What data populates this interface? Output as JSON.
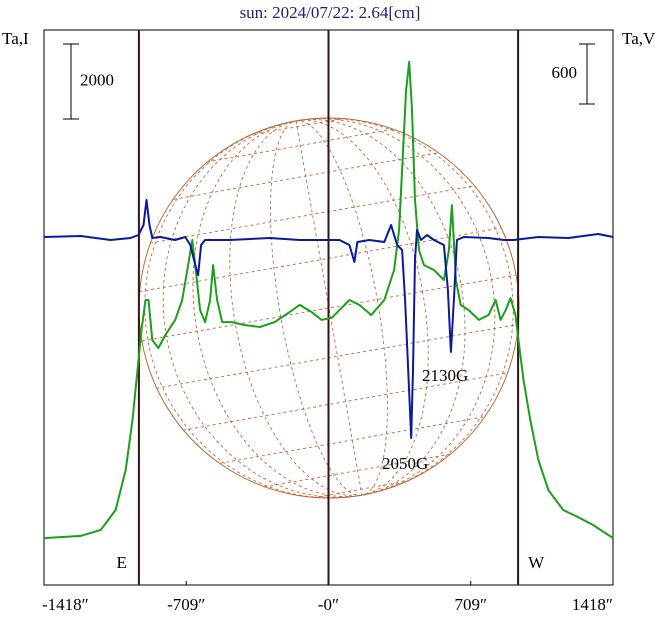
{
  "chart_data": {
    "type": "line",
    "title": "sun: 2024/07/22: 2.64[cm]",
    "xlim": [
      -1418,
      1418
    ],
    "xticks": [
      {
        "value": -1418,
        "label": "-1418″"
      },
      {
        "value": -709,
        "label": "-709″"
      },
      {
        "value": 0,
        "label": "-0″"
      },
      {
        "value": 709,
        "label": "709″"
      },
      {
        "value": 1418,
        "label": "1418″"
      }
    ],
    "ylim": [
      0,
      14800
    ],
    "y2lim": [
      -3480,
      2070
    ],
    "scale_bars": [
      {
        "axis": "y",
        "value": 2000
      },
      {
        "axis": "y2",
        "value": 600
      }
    ],
    "vlines": [
      -945,
      0,
      945
    ],
    "limb_labels": [
      "E",
      "W"
    ],
    "annotations": [
      "2130G",
      "2050G"
    ],
    "series": [
      {
        "name": "Ta,I",
        "color": "#1aa01a",
        "x": [
          -1418,
          -1235,
          -1135,
          -1061,
          -1011,
          -977,
          -952,
          -932,
          -912,
          -897,
          -878,
          -848,
          -813,
          -764,
          -729,
          -704,
          -679,
          -659,
          -640,
          -615,
          -590,
          -575,
          -555,
          -530,
          -481,
          -416,
          -342,
          -268,
          -193,
          -144,
          -84,
          -35,
          15,
          55,
          104,
          154,
          213,
          278,
          327,
          352,
          372,
          387,
          402,
          416,
          431,
          451,
          476,
          526,
          575,
          600,
          615,
          635,
          659,
          699,
          749,
          798,
          833,
          858,
          883,
          907,
          932,
          947,
          972,
          1006,
          1046,
          1096,
          1170,
          1244,
          1319,
          1418
        ],
        "values": [
          1250,
          1310,
          1470,
          2000,
          3070,
          4400,
          5730,
          6800,
          7600,
          7600,
          6530,
          6320,
          6670,
          7070,
          7600,
          8400,
          9200,
          8270,
          7330,
          7010,
          7600,
          8530,
          7600,
          7010,
          7010,
          6930,
          6880,
          7010,
          7280,
          7470,
          7280,
          7070,
          7120,
          7330,
          7600,
          7470,
          7200,
          7600,
          8400,
          9470,
          11600,
          13200,
          13950,
          12670,
          10270,
          8930,
          8530,
          8400,
          8130,
          8930,
          10130,
          8130,
          7470,
          7330,
          7070,
          7200,
          7600,
          7070,
          7330,
          7650,
          7200,
          6530,
          5470,
          4400,
          3330,
          2530,
          2000,
          1810,
          1600,
          1250
        ]
      },
      {
        "name": "Ta,V",
        "color": "#0a1a9a",
        "axis": "y2",
        "x": [
          -1418,
          -1235,
          -1086,
          -987,
          -947,
          -922,
          -907,
          -892,
          -878,
          -838,
          -764,
          -714,
          -689,
          -664,
          -650,
          -635,
          -615,
          -491,
          -293,
          -144,
          55,
          104,
          129,
          144,
          203,
          278,
          312,
          342,
          367,
          382,
          397,
          412,
          421,
          431,
          441,
          461,
          491,
          526,
          575,
          595,
          610,
          625,
          640,
          674,
          798,
          873,
          922,
          1046,
          1195,
          1344,
          1418
        ],
        "values": [
          0,
          10,
          -30,
          -10,
          20,
          120,
          370,
          120,
          -10,
          0,
          -30,
          0,
          -80,
          -280,
          -380,
          -80,
          -30,
          -30,
          -10,
          -30,
          -30,
          -80,
          -250,
          -50,
          -30,
          -50,
          120,
          -80,
          -130,
          -630,
          -1330,
          -2010,
          -1330,
          -230,
          70,
          -30,
          20,
          -30,
          -80,
          -530,
          -1150,
          -630,
          -30,
          0,
          -10,
          -30,
          -30,
          0,
          -10,
          30,
          0
        ]
      }
    ]
  }
}
